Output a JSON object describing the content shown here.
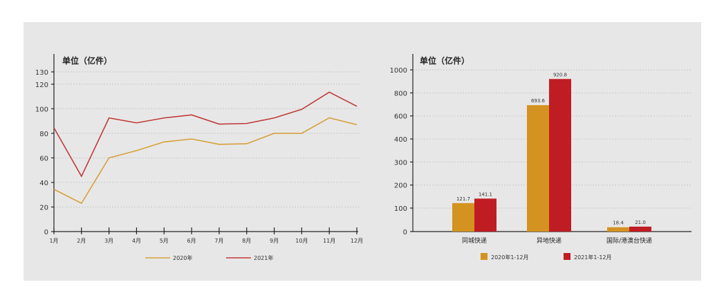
{
  "chart_data": [
    {
      "type": "line",
      "unit_label": "单位（亿件）",
      "categories": [
        "1月",
        "2月",
        "3月",
        "4月",
        "5月",
        "6月",
        "7月",
        "8月",
        "9月",
        "10月",
        "11月",
        "12月"
      ],
      "series": [
        {
          "name": "2020年",
          "color": "#d4a03a",
          "values": [
            34.4,
            23.0,
            60.0,
            65.9,
            73.0,
            75.4,
            71.0,
            71.5,
            80.0,
            80.0,
            92.6,
            87.0
          ]
        },
        {
          "name": "2021年",
          "color": "#c0393b",
          "values": [
            84.5,
            45.0,
            92.5,
            88.5,
            92.5,
            95.0,
            87.5,
            88.0,
            92.5,
            99.5,
            113.5,
            102.0
          ]
        }
      ],
      "y_ticks": [
        0,
        20,
        40,
        60,
        80,
        100,
        120,
        130
      ],
      "ylim": [
        0,
        130
      ],
      "legend_position": "bottom",
      "grid": true
    },
    {
      "type": "bar",
      "unit_label": "单位（亿件）",
      "categories": [
        "同城快递",
        "异地快递",
        "国际/港澳台快递"
      ],
      "series": [
        {
          "name": "2020年1-12月",
          "color": "#d49320",
          "values": [
            121.7,
            693.6,
            18.4
          ],
          "labels": [
            "121.7",
            "693.6",
            "18.4"
          ]
        },
        {
          "name": "2021年1-12月",
          "color": "#c01c24",
          "values": [
            141.1,
            920.8,
            21.0
          ],
          "labels": [
            "141.1",
            "920.8",
            "21.0"
          ]
        }
      ],
      "y_ticks": [
        0,
        100,
        200,
        300,
        400,
        600,
        800,
        1000
      ],
      "ylim": [
        0,
        1000
      ],
      "legend_position": "bottom",
      "grid": true
    }
  ]
}
